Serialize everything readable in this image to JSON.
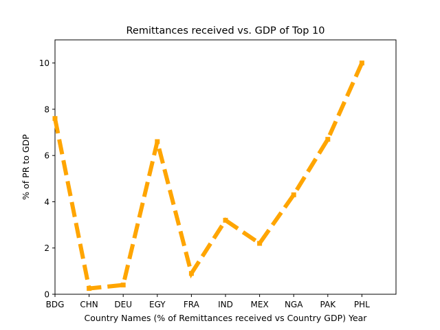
{
  "chart_data": {
    "type": "line",
    "title": "Remittances received vs. GDP of Top 10",
    "xlabel": "Country Names (% of Remittances received vs Country GDP) Year",
    "ylabel": "% of PR to GDP",
    "categories": [
      "BDG",
      "CHN",
      "DEU",
      "EGY",
      "FRA",
      "IND",
      "MEX",
      "NGA",
      "PAK",
      "PHL"
    ],
    "series": [
      {
        "values": [
          7.6,
          0.25,
          0.4,
          6.6,
          0.9,
          3.2,
          2.2,
          4.3,
          6.7,
          10.0
        ],
        "color": "#FFA500",
        "line_style": "dashed",
        "marker": "square"
      }
    ],
    "x_extent_categories": 10,
    "ylim": [
      0,
      11
    ],
    "yticks": [
      0,
      2,
      4,
      6,
      8,
      10
    ],
    "grid": false,
    "legend": "none"
  }
}
